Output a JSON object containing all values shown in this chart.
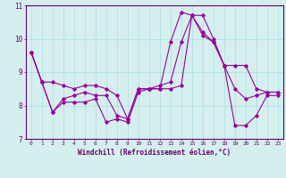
{
  "xlabel": "Windchill (Refroidissement éolien,°C)",
  "hours": [
    0,
    1,
    2,
    3,
    4,
    5,
    6,
    7,
    8,
    9,
    10,
    11,
    12,
    13,
    14,
    15,
    16,
    17,
    18,
    19,
    20,
    21,
    22,
    23
  ],
  "line1": [
    9.6,
    8.7,
    8.7,
    8.6,
    8.5,
    8.6,
    8.6,
    8.5,
    8.3,
    7.6,
    8.5,
    8.5,
    8.5,
    9.9,
    10.8,
    10.7,
    10.7,
    10.0,
    9.2,
    9.2,
    9.2,
    8.5,
    8.4,
    8.4
  ],
  "line2": [
    9.6,
    8.7,
    7.8,
    8.2,
    8.3,
    8.4,
    8.3,
    8.3,
    7.7,
    7.6,
    8.5,
    8.5,
    8.6,
    8.7,
    9.9,
    10.7,
    10.2,
    9.9,
    9.2,
    8.5,
    8.2,
    8.3,
    8.4,
    8.4
  ],
  "line3": [
    9.6,
    8.7,
    7.8,
    8.1,
    8.1,
    8.1,
    8.2,
    7.5,
    7.6,
    7.5,
    8.4,
    8.5,
    8.5,
    8.5,
    8.6,
    10.7,
    10.1,
    9.9,
    9.2,
    7.4,
    7.4,
    7.7,
    8.3,
    8.3
  ],
  "ylim": [
    7.0,
    11.0
  ],
  "yticks": [
    7,
    8,
    9,
    10,
    11
  ],
  "line_color": "#990099",
  "bg_color": "#d5efef",
  "grid_color": "#aadddd",
  "axis_color": "#777777",
  "font_color": "#660066"
}
